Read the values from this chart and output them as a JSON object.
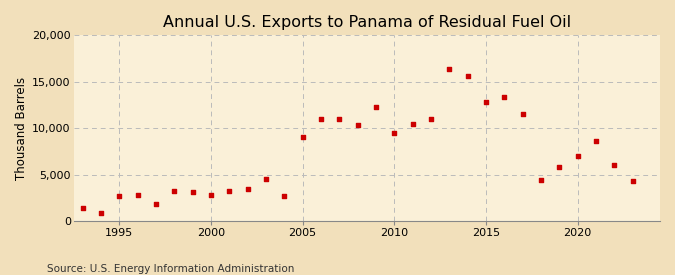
{
  "title": "Annual U.S. Exports to Panama of Residual Fuel Oil",
  "ylabel": "Thousand Barrels",
  "source": "Source: U.S. Energy Information Administration",
  "background_color": "#f2e0bb",
  "plot_background_color": "#faf0d8",
  "marker_color": "#cc0000",
  "grid_color": "#bbbbbb",
  "years": [
    1993,
    1994,
    1995,
    1996,
    1997,
    1998,
    1999,
    2000,
    2001,
    2002,
    2003,
    2004,
    2005,
    2006,
    2007,
    2008,
    2009,
    2010,
    2011,
    2012,
    2013,
    2014,
    2015,
    2016,
    2017,
    2018,
    2019,
    2020,
    2021,
    2022,
    2023
  ],
  "values": [
    1400,
    900,
    2700,
    2800,
    1800,
    3200,
    3100,
    2800,
    3200,
    3500,
    4500,
    2700,
    9000,
    11000,
    11000,
    10300,
    12300,
    9500,
    10400,
    11000,
    16400,
    15600,
    12800,
    13400,
    11500,
    4400,
    5800,
    7000,
    8600,
    6000,
    4300
  ],
  "ylim": [
    0,
    20000
  ],
  "yticks": [
    0,
    5000,
    10000,
    15000,
    20000
  ],
  "xlim": [
    1992.5,
    2024.5
  ],
  "xticks": [
    1995,
    2000,
    2005,
    2010,
    2015,
    2020
  ],
  "title_fontsize": 11.5,
  "label_fontsize": 8.5,
  "tick_fontsize": 8,
  "source_fontsize": 7.5
}
